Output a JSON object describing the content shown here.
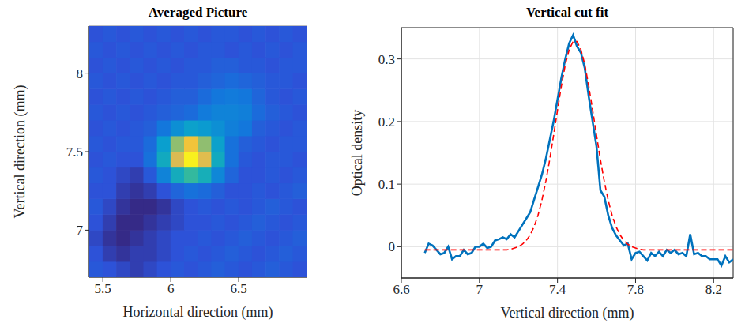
{
  "chart_data": [
    {
      "type": "heatmap",
      "title": "Averaged Picture",
      "x_label": "Horizontal direction (mm)",
      "y_label": "Vertical direction (mm)",
      "x": [
        5.45,
        5.55,
        5.65,
        5.75,
        5.85,
        5.95,
        6.05,
        6.15,
        6.25,
        6.35,
        6.45,
        6.55,
        6.65,
        6.75,
        6.85,
        6.95
      ],
      "y": [
        6.75,
        6.85,
        6.95,
        7.05,
        7.15,
        7.25,
        7.35,
        7.45,
        7.55,
        7.65,
        7.75,
        7.85,
        7.95,
        8.05,
        8.15,
        8.25
      ],
      "cells": [
        [
          0.005,
          0.0,
          -0.005,
          -0.01,
          -0.005,
          0.0,
          0.005,
          0.0,
          0.005,
          0.01,
          0.005,
          0.0,
          0.005,
          0.01,
          0.005,
          0.0
        ],
        [
          0.0,
          -0.01,
          -0.015,
          -0.01,
          -0.01,
          -0.005,
          0.0,
          0.005,
          0.0,
          0.005,
          0.01,
          0.005,
          0.0,
          0.005,
          0.01,
          0.005
        ],
        [
          -0.005,
          -0.015,
          -0.02,
          -0.015,
          -0.01,
          -0.005,
          0.0,
          0.0,
          0.005,
          0.0,
          0.005,
          0.01,
          0.005,
          0.0,
          0.005,
          0.01
        ],
        [
          0.0,
          -0.01,
          -0.02,
          -0.02,
          -0.015,
          -0.01,
          -0.005,
          0.0,
          0.0,
          0.005,
          0.0,
          0.005,
          0.01,
          0.005,
          0.0,
          0.005
        ],
        [
          0.005,
          -0.005,
          -0.015,
          -0.02,
          -0.02,
          -0.015,
          -0.005,
          0.0,
          0.005,
          0.0,
          0.005,
          0.0,
          0.005,
          0.01,
          0.005,
          0.0
        ],
        [
          0.0,
          0.0,
          -0.01,
          -0.015,
          -0.01,
          0.0,
          0.015,
          0.025,
          0.02,
          0.01,
          0.0,
          0.0,
          0.005,
          0.0,
          0.005,
          0.01
        ],
        [
          0.005,
          0.0,
          -0.005,
          -0.01,
          0.005,
          0.045,
          0.105,
          0.14,
          0.11,
          0.05,
          0.015,
          0.0,
          0.0,
          0.005,
          0.0,
          0.005
        ],
        [
          0.0,
          0.005,
          0.0,
          0.0,
          0.025,
          0.1,
          0.23,
          0.31,
          0.235,
          0.1,
          0.025,
          0.005,
          0.0,
          0.005,
          0.005,
          0.0
        ],
        [
          0.005,
          0.0,
          0.005,
          0.005,
          0.02,
          0.08,
          0.19,
          0.255,
          0.19,
          0.085,
          0.025,
          0.01,
          0.005,
          0.0,
          0.005,
          0.005
        ],
        [
          0.0,
          0.005,
          0.0,
          0.005,
          0.01,
          0.03,
          0.06,
          0.085,
          0.075,
          0.06,
          0.04,
          0.03,
          0.01,
          0.005,
          0.0,
          0.005
        ],
        [
          0.005,
          0.0,
          0.005,
          0.0,
          0.005,
          0.01,
          0.015,
          0.02,
          0.035,
          0.045,
          0.045,
          0.04,
          0.02,
          0.01,
          0.005,
          0.0
        ],
        [
          0.0,
          0.005,
          0.0,
          0.005,
          0.0,
          0.005,
          0.01,
          0.01,
          0.02,
          0.03,
          0.035,
          0.03,
          0.015,
          0.005,
          0.0,
          0.005
        ],
        [
          0.005,
          0.0,
          0.005,
          0.0,
          0.005,
          0.0,
          0.005,
          0.005,
          0.01,
          0.015,
          0.02,
          0.015,
          0.01,
          0.005,
          0.005,
          0.0
        ],
        [
          0.0,
          0.005,
          0.0,
          0.005,
          0.0,
          0.005,
          0.0,
          0.005,
          0.005,
          0.01,
          0.01,
          0.005,
          0.005,
          0.0,
          0.005,
          0.005
        ],
        [
          0.005,
          0.0,
          0.005,
          0.0,
          0.005,
          0.0,
          0.005,
          0.0,
          0.005,
          0.005,
          0.0,
          0.005,
          0.0,
          0.005,
          0.0,
          0.005
        ],
        [
          0.0,
          0.005,
          0.0,
          0.005,
          0.0,
          0.005,
          0.0,
          0.005,
          0.0,
          0.005,
          0.005,
          0.0,
          0.005,
          0.0,
          0.005,
          0.0
        ]
      ],
      "xlim": [
        5.4,
        7.0
      ],
      "ylim": [
        6.7,
        8.3
      ],
      "xticks": [
        5.5,
        6,
        6.5
      ],
      "yticks": [
        7,
        7.5,
        8
      ],
      "grid": false
    },
    {
      "type": "line",
      "title": "Vertical cut fit",
      "x_label": "Vertical direction (mm)",
      "y_label": "Optical density",
      "x": [
        6.72,
        6.74,
        6.76,
        6.78,
        6.8,
        6.82,
        6.84,
        6.86,
        6.88,
        6.9,
        6.92,
        6.94,
        6.96,
        6.98,
        7.0,
        7.02,
        7.04,
        7.06,
        7.08,
        7.1,
        7.12,
        7.14,
        7.16,
        7.18,
        7.2,
        7.22,
        7.24,
        7.26,
        7.28,
        7.3,
        7.32,
        7.34,
        7.36,
        7.38,
        7.4,
        7.42,
        7.44,
        7.46,
        7.48,
        7.5,
        7.52,
        7.54,
        7.56,
        7.58,
        7.6,
        7.62,
        7.64,
        7.66,
        7.68,
        7.7,
        7.72,
        7.74,
        7.76,
        7.78,
        7.8,
        7.82,
        7.84,
        7.86,
        7.88,
        7.9,
        7.92,
        7.94,
        7.96,
        7.98,
        8.0,
        8.02,
        8.04,
        8.06,
        8.08,
        8.1,
        8.12,
        8.14,
        8.16,
        8.18,
        8.2,
        8.22,
        8.24,
        8.26,
        8.28,
        8.3
      ],
      "series": [
        {
          "color": "#0072bd",
          "line_style": "solid",
          "values": [
            -0.01,
            0.005,
            0.002,
            -0.005,
            -0.012,
            -0.01,
            0.0,
            -0.02,
            -0.015,
            -0.015,
            -0.005,
            -0.012,
            -0.01,
            0.0,
            0.0,
            0.005,
            -0.002,
            0.0,
            0.01,
            0.012,
            0.015,
            0.012,
            0.02,
            0.015,
            0.025,
            0.035,
            0.045,
            0.055,
            0.075,
            0.095,
            0.115,
            0.14,
            0.17,
            0.2,
            0.235,
            0.27,
            0.3,
            0.325,
            0.338,
            0.32,
            0.31,
            0.285,
            0.24,
            0.2,
            0.16,
            0.09,
            0.08,
            0.05,
            0.03,
            0.018,
            0.01,
            0.002,
            0.005,
            -0.02,
            -0.01,
            -0.008,
            -0.015,
            -0.022,
            -0.01,
            -0.015,
            -0.008,
            -0.015,
            -0.005,
            -0.01,
            -0.005,
            -0.012,
            -0.01,
            -0.015,
            0.02,
            -0.012,
            -0.01,
            -0.015,
            -0.015,
            -0.02,
            -0.02,
            -0.02,
            -0.03,
            -0.015,
            -0.025,
            -0.02
          ]
        },
        {
          "color": "#ff0000",
          "line_style": "dashed",
          "values": [
            -0.005,
            -0.005,
            -0.005,
            -0.005,
            -0.005,
            -0.005,
            -0.005,
            -0.005,
            -0.005,
            -0.005,
            -0.005,
            -0.005,
            -0.005,
            -0.005,
            -0.005,
            -0.005,
            -0.005,
            -0.005,
            -0.005,
            -0.005,
            -0.005,
            -0.005,
            -0.004,
            -0.002,
            0.0,
            0.004,
            0.01,
            0.019,
            0.032,
            0.05,
            0.074,
            0.104,
            0.139,
            0.178,
            0.218,
            0.257,
            0.291,
            0.315,
            0.328,
            0.328,
            0.315,
            0.291,
            0.257,
            0.218,
            0.178,
            0.139,
            0.104,
            0.074,
            0.05,
            0.032,
            0.019,
            0.01,
            0.004,
            0.0,
            -0.002,
            -0.004,
            -0.005,
            -0.005,
            -0.005,
            -0.005,
            -0.005,
            -0.005,
            -0.005,
            -0.005,
            -0.005,
            -0.005,
            -0.005,
            -0.005,
            -0.005,
            -0.005,
            -0.005,
            -0.005,
            -0.005,
            -0.005,
            -0.005,
            -0.005,
            -0.005,
            -0.005,
            -0.005,
            -0.005
          ]
        }
      ],
      "xlim": [
        6.6,
        8.3
      ],
      "ylim": [
        -0.05,
        0.35
      ],
      "xticks": [
        6.6,
        7,
        7.4,
        7.8,
        8.2
      ],
      "yticks": [
        0,
        0.1,
        0.2,
        0.3
      ],
      "grid": true
    }
  ]
}
